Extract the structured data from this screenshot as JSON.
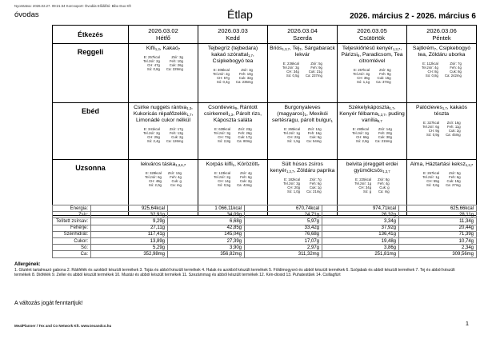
{
  "colors": {
    "page_bg": "#ffffff",
    "table_border": "#000000",
    "totals_border": "#777777",
    "text": "#000000"
  },
  "meta": {
    "printed_line": "Nyomtatva: 2026.02.27. 09:21:34 Korcsoport: Óvodás Előállító: Bibo Duo Kft",
    "group": "óvodas",
    "title": "Étlap",
    "date_range": "2026. március 2 - 2026. március 6",
    "change_note": "A változás jogát fenntartjuk!",
    "footer": "MealPlanner / Tex and Co Network Kft. www.texandco.hu",
    "page_number": "1"
  },
  "menu_table": {
    "corner_label": "Étkezés",
    "days": [
      {
        "date": "2026.03.02",
        "day": "Hétfő"
      },
      {
        "date": "2026.03.03",
        "day": "Kedd"
      },
      {
        "date": "2026.03.04",
        "day": "Szerda"
      },
      {
        "date": "2026.03.05",
        "day": "Csütörtök"
      },
      {
        "date": "2026.03.06",
        "day": "Péntek"
      }
    ],
    "rows": [
      {
        "label": "Reggeli",
        "cells": [
          {
            "name": "Kifli~1,3~, Kakaó~7~",
            "nutrition_left": [
              "E: 257kcal",
              "Tel.zsír: 2g",
              "CH: 47g",
              "Só: 0,8g"
            ],
            "nutrition_right": [
              "Zsír: 3g",
              "Feh: 10g",
              "Cuk: 26g",
              "Ca: 229mg"
            ]
          },
          {
            "name": "Tejbegríz (tejbedara) kakaó szórattal~1,7~, Csipkebogyó tea",
            "nutrition_left": [
              "E: 305kcal",
              "Tel.zsír: 2g",
              "CH: 57g",
              "Só: 0,4g"
            ],
            "nutrition_right": [
              "Zsír: 3g",
              "Feh: 10g",
              "Cuk: 32g",
              "Ca: 235mg"
            ]
          },
          {
            "name": "Briós~1,3,7~, Tej~7~, Sárgabarack lekvár",
            "nutrition_left": [
              "E: 236kcal",
              "Tel.zsír: 3g",
              "CH: 34g",
              "Só: 0,5g"
            ],
            "nutrition_right": [
              "Zsír: 5g",
              "Feh: 9g",
              "Cuk: 21g",
              "Ca: 237mg"
            ]
          },
          {
            "name": "Teljeskiőrlésű kenyér~1,3,7~, Párizsi~6~, Paradicsom, Tea citromlével",
            "nutrition_left": [
              "E: 267kcal",
              "Tel.zsír: 3g",
              "CH: 36g",
              "Só: 1,1g"
            ],
            "nutrition_right": [
              "Zsír: 6g",
              "Feh: 9g",
              "Cuk: 15g",
              "Ca: 37mg"
            ]
          },
          {
            "name": "Sajtkrém~7~, Csipkebogyó tea, Zöldáru uborka",
            "nutrition_left": [
              "E: 112kcal",
              "Tel.zsír: 4g",
              "CH: 8g",
              "Só: 0,8g"
            ],
            "nutrition_right": [
              "Zsír: 7g",
              "Feh: 4g",
              "Cuk: 8g",
              "Ca: 242mg"
            ]
          }
        ]
      },
      {
        "label": "Ebéd",
        "cells": [
          {
            "name": "Csirke nuggets rántva~1,3~, Kukoricás répafőzelék~1,7~, Limonádé cukor nélkül",
            "nutrition_left": [
              "E: 341kcal",
              "Tel.zsír: 2g",
              "CH: 25g",
              "Só: 2,4g"
            ],
            "nutrition_right": [
              "Zsír: 17g",
              "Feh: 13g",
              "Cuk: 2g",
              "Ca: 126mg"
            ]
          },
          {
            "name": "Csontleves~9~, Rántott csirkemell~1,3~, Párolt rizs, Káposzta saláta",
            "nutrition_left": [
              "E: 639kcal",
              "Tel.zsír: 3g",
              "CH: 73g",
              "Só: 2,8g"
            ],
            "nutrition_right": [
              "Zsír: 23g",
              "Feh: 26g",
              "Cuk: 17g",
              "Ca: 80mg"
            ]
          },
          {
            "name": "Burgonyaleves (magyaros)~1~, Mexikói sertésragu, párolt bulgur~1~",
            "nutrition_left": [
              "E: 265kcal",
              "Tel.zsír: 1g",
              "CH: 22g",
              "Só: 1,5g"
            ],
            "nutrition_right": [
              "Zsír: 12g",
              "Feh: 16g",
              "Cuk: 5g",
              "Ca: 54mg"
            ]
          },
          {
            "name": "Székelykáposzta~1,7~, Kenyér félbarna~1,3,7~, puding vanília~6,7~",
            "nutrition_left": [
              "E: 490kcal",
              "Tel.zsír: 2g",
              "CH: 66g",
              "Só: 2,8g"
            ],
            "nutrition_right": [
              "Zsír: 14g",
              "Feh: 20g",
              "Cuk: 30g",
              "Ca: 215mg"
            ]
          },
          {
            "name": "Palócleves~1,7~, kakaós tészta",
            "nutrition_left": [
              "E: 327kcal",
              "Tel.zsír: 6g",
              "CH: 9g",
              "Só: 0,9g"
            ],
            "nutrition_right": [
              "Zsír: 16g",
              "Feh: 11g",
              "Cuk: 2g",
              "Ca: 45mg"
            ]
          }
        ]
      },
      {
        "label": "Uzsonna",
        "cells": [
          {
            "name": "lekváros táska~1,3,6,7~",
            "nutrition_left": [
              "E: 329kcal",
              "Tel.zsír: 6g",
              "CH: 48g",
              "Só: 2,0g"
            ],
            "nutrition_right": [
              "Zsír: 13g",
              "Feh: 4g",
              "Cuk: g",
              "Ca: mg"
            ]
          },
          {
            "name": "Korpás kifli~1~, Körözött~7~",
            "nutrition_left": [
              "E: 123kcal",
              "Tel.zsír: 2g",
              "CH: 14g",
              "Só: 0,5g"
            ],
            "nutrition_right": [
              "Zsír: 4g",
              "Feh: 6g",
              "Cuk: 2g",
              "Ca: 42mg"
            ]
          },
          {
            "name": "Sült húsos zsíros kenyér~1,3,7~, Zöldáru paprika",
            "nutrition_left": [
              "E: 182kcal",
              "Tel.zsír: 3g",
              "CH: 20g",
              "Só: 1,0g"
            ],
            "nutrition_right": [
              "Zsír: 7g",
              "Feh: 6g",
              "Cuk: 1g",
              "Ca: 21mg"
            ]
          },
          {
            "name": "belvita jóreggelt erdei gyümölcsös~1,3,7~",
            "nutrition_left": [
              "E: 225kcal",
              "Tel.zsír: 1g",
              "CH: 34g",
              "Só: g"
            ],
            "nutrition_right": [
              "Zsír: 8g",
              "Feh: 4g",
              "Cuk: g",
              "Ca: mg"
            ]
          },
          {
            "name": "Alma, Háztartási keksz~1,3,7~",
            "nutrition_left": [
              "E: 267kcal",
              "Tel.zsír: 1g",
              "CH: 55g",
              "Só: 0,6g"
            ],
            "nutrition_right": [
              "Zsír: 5g",
              "Feh: 6g",
              "Cuk: 19g",
              "Ca: 27mg"
            ]
          }
        ]
      }
    ]
  },
  "totals_table": {
    "rows": [
      {
        "label": "Energia:",
        "values": [
          "925,64kcal",
          "1 066,11kcal",
          "670,74kcal",
          "974,71kcal",
          "625,66kcal"
        ]
      },
      {
        "label": "Zsír:",
        "values": [
          "32,91g",
          "34,09g",
          "24,71g",
          "26,32g",
          "28,11g"
        ]
      },
      {
        "label": "Telített zsírsav:",
        "values": [
          "9,29g",
          "6,68g",
          "5,97g",
          "3,34g",
          "11,34g"
        ]
      },
      {
        "label": "Fehérje:",
        "values": [
          "27,11g",
          "42,85g",
          "33,42g",
          "37,92g",
          "20,44g"
        ]
      },
      {
        "label": "Szénhidrát:",
        "values": [
          "117,41g",
          "145,04g",
          "76,68g",
          "136,41g",
          "71,39g"
        ]
      },
      {
        "label": "Cukor:",
        "values": [
          "13,89g",
          "27,39g",
          "17,07g",
          "19,48g",
          "10,74g"
        ]
      },
      {
        "label": "Só:",
        "values": [
          "5,29g",
          "3,90g",
          "2,97g",
          "3,86g",
          "2,34g"
        ]
      },
      {
        "label": "Ca:",
        "values": [
          "352,98mg",
          "356,82mg",
          "311,32mg",
          "251,81mg",
          "309,56mg"
        ]
      }
    ]
  },
  "allergens": {
    "heading": "Allergének:",
    "text": "1. Glutént tartalmazó gabona 2. Rákfélék és azokból készült termékek 3. Tojás és abból készült termékek 4. Halak és azokból készült termékek 5. Földimogyoró és abból készült termékek 6. Szójabab és abból készült termékek 7. Tej és abból készült termékek 8. Diófélék 9. Zeller és abból készült termékek 10. Mustár és abból készült termékek 11. Szezámmag és abból készült termékek 12. Kén-dioxid 13. Puhatestűek 14. Csillagfürt"
  }
}
